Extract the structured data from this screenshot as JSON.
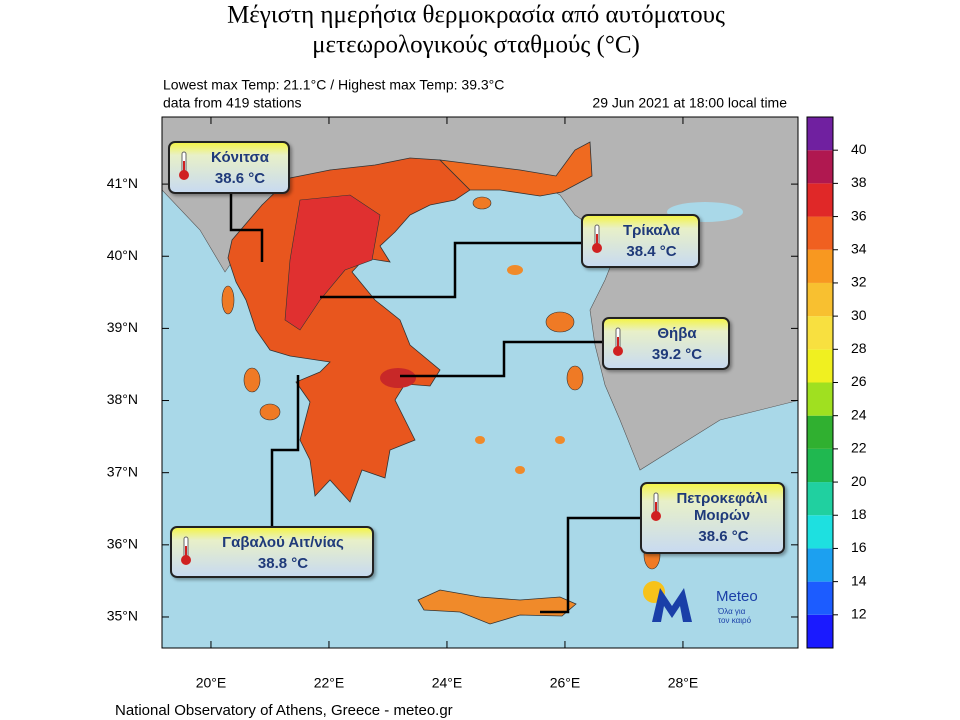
{
  "map": {
    "title": [
      "Μέγιστη ημερήσια θερμοκρασία από αυτόματους",
      "μετεωρολογικούς σταθμούς (°C)"
    ],
    "info": {
      "extremes": "Lowest max Temp: 21.1°C / Highest max Temp: 39.3°C",
      "stations": "data from 419 stations",
      "time": "29 Jun 2021 at 18:00 local time"
    },
    "xlim": [
      19.17,
      29.95
    ],
    "ylim": [
      34.57,
      41.93
    ],
    "xticks": [
      {
        "value": 20,
        "label": "20°E"
      },
      {
        "value": 22,
        "label": "22°E"
      },
      {
        "value": 24,
        "label": "24°E"
      },
      {
        "value": 26,
        "label": "26°E"
      },
      {
        "value": 28,
        "label": "28°E"
      }
    ],
    "yticks": [
      {
        "value": 35,
        "label": "35°N"
      },
      {
        "value": 36,
        "label": "36°N"
      },
      {
        "value": 37,
        "label": "37°N"
      },
      {
        "value": 38,
        "label": "38°N"
      },
      {
        "value": 39,
        "label": "39°N"
      },
      {
        "value": 40,
        "label": "40°N"
      },
      {
        "value": 41,
        "label": "41°N"
      }
    ],
    "colorbar": {
      "lim": [
        10,
        42
      ],
      "ticks": [
        12,
        14,
        16,
        18,
        20,
        22,
        24,
        26,
        28,
        30,
        32,
        34,
        36,
        38,
        40
      ],
      "colors": [
        "#1a1aff",
        "#1c5cff",
        "#1ca0f0",
        "#1ee0e0",
        "#20d0a0",
        "#20b850",
        "#30b030",
        "#a0e020",
        "#f0f020",
        "#f8e040",
        "#f8c030",
        "#f89820",
        "#f06020",
        "#e02828",
        "#b01850",
        "#7020a0"
      ]
    },
    "callouts": [
      {
        "name": "Κόνιτσα",
        "value": 38.6,
        "unit": "°C"
      },
      {
        "name": "Τρίκαλα",
        "value": 38.4,
        "unit": "°C"
      },
      {
        "name": "Θήβα",
        "value": 39.2,
        "unit": "°C"
      },
      {
        "name": "Πετροκεφάλι Μοιρών",
        "value": 38.6,
        "unit": "°C"
      },
      {
        "name": "Γαβαλού Αιτ/νίας",
        "value": 38.8,
        "unit": "°C"
      }
    ],
    "logo": {
      "name": "Meteo",
      "slogan": [
        "Όλα για",
        "τον καιρό"
      ]
    },
    "footer": "National Observatory of Athens, Greece - meteo.gr"
  }
}
